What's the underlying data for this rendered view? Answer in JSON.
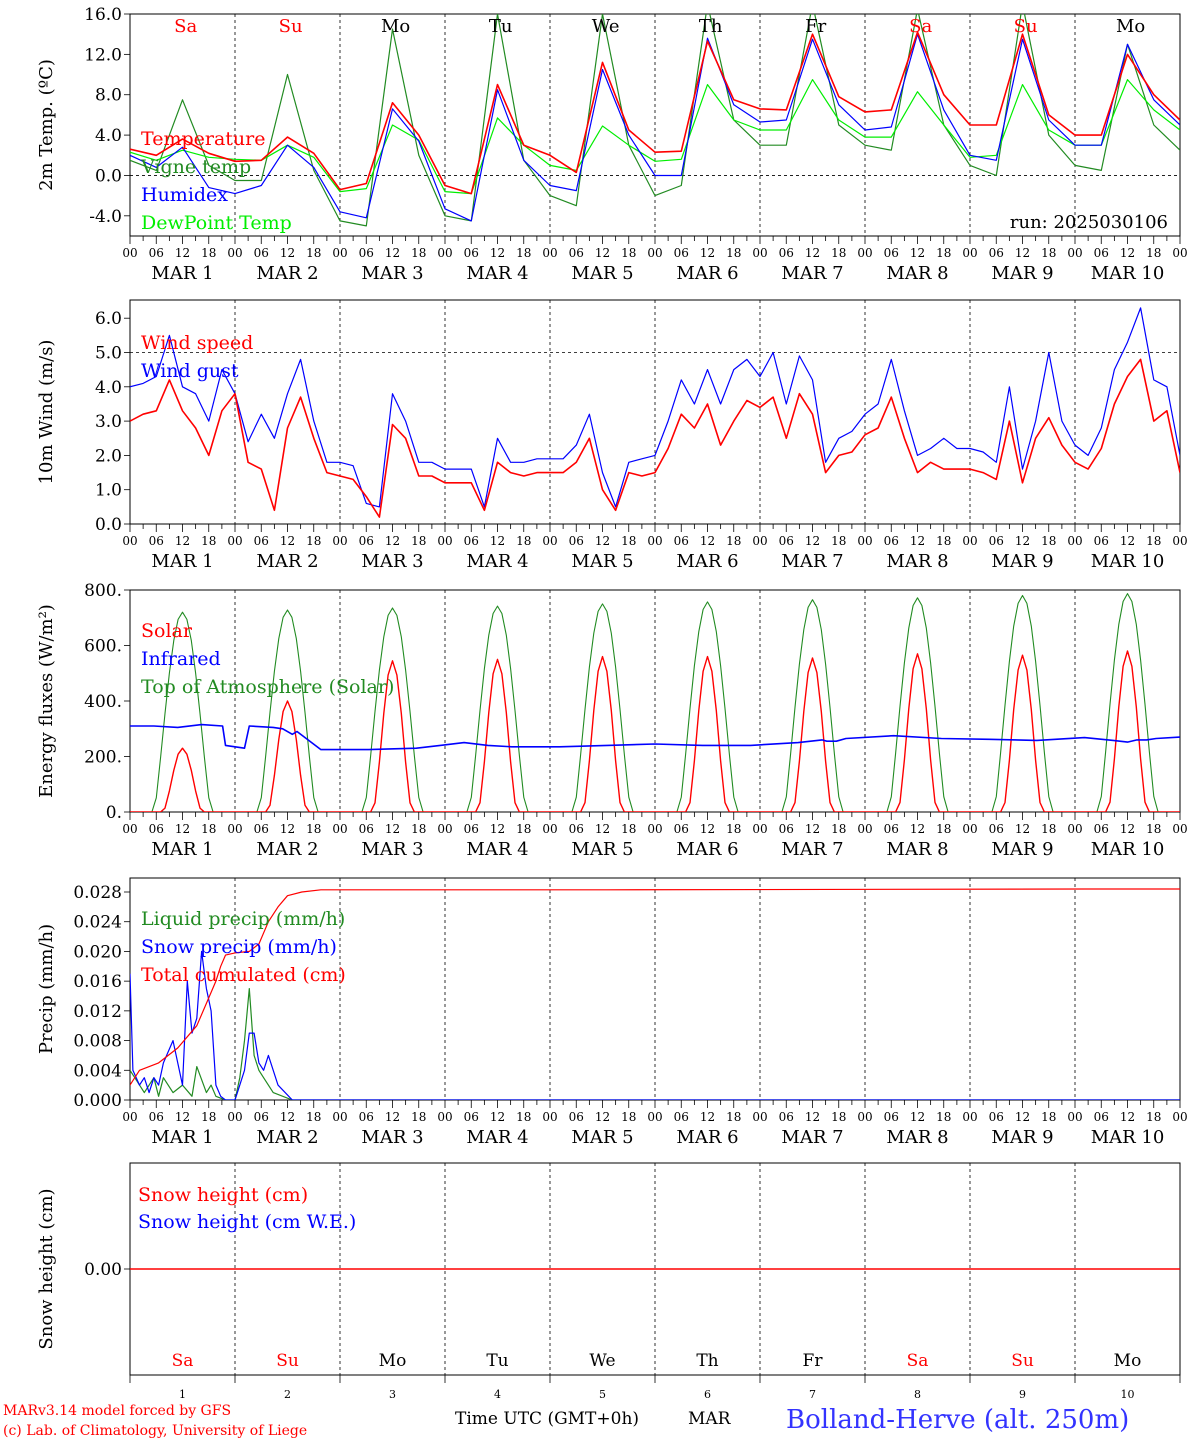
{
  "footer": {
    "credit_line1": "MARv3.14 model forced by GFS",
    "credit_line2": "(c) Lab. of Climatology, University of Liege",
    "xlabel": "Time UTC (GMT+0h)",
    "month": "MAR",
    "location": "Bolland-Herve (alt. 250m)",
    "day_numbers": [
      "1",
      "2",
      "3",
      "4",
      "5",
      "6",
      "7",
      "8",
      "9",
      "10"
    ]
  },
  "axis": {
    "hour_ticks": [
      "00",
      "06",
      "12",
      "18"
    ],
    "end_tick": "00",
    "day_labels": [
      "MAR  1",
      "MAR  2",
      "MAR  3",
      "MAR  4",
      "MAR  5",
      "MAR  6",
      "MAR  7",
      "MAR  8",
      "MAR  9",
      "MAR 10"
    ],
    "weekdays": [
      "Sa",
      "Su",
      "Mo",
      "Tu",
      "We",
      "Th",
      "Fr",
      "Sa",
      "Su",
      "Mo"
    ],
    "weekend_color": "#ff0000",
    "weekday_color": "#000000"
  },
  "colors": {
    "red": "#ff0000",
    "darkgreen": "#228b22",
    "blue": "#0000ff",
    "lightgreen": "#00ee00",
    "location": "#3333ff"
  },
  "chart_data": [
    {
      "type": "line",
      "ylabel": "2m Temp. (ºC)",
      "ylim": [
        -6,
        16
      ],
      "yticks": [
        {
          "v": -4,
          "label": "-4.0"
        },
        {
          "v": 0,
          "label": "0.0"
        },
        {
          "v": 4,
          "label": "4.0"
        },
        {
          "v": 8,
          "label": "8.0"
        },
        {
          "v": 12,
          "label": "12.0"
        },
        {
          "v": 16,
          "label": "16.0"
        }
      ],
      "refline": 0,
      "annotation": "run: 2025030106",
      "x_days": [
        0,
        0.25,
        0.5,
        0.75,
        1,
        1.25,
        1.5,
        1.75,
        2,
        2.25,
        2.5,
        2.75,
        3,
        3.25,
        3.5,
        3.75,
        4,
        4.25,
        4.5,
        4.75,
        5,
        5.25,
        5.5,
        5.75,
        6,
        6.25,
        6.5,
        6.75,
        7,
        7.25,
        7.5,
        7.75,
        8,
        8.25,
        8.5,
        8.75,
        9,
        9.25,
        9.5,
        9.75,
        10
      ],
      "series": [
        {
          "name": "Temperature",
          "color": "red",
          "values": [
            2.6,
            2.0,
            3.6,
            2.2,
            1.4,
            1.5,
            3.8,
            2.2,
            -1.4,
            -0.8,
            7.2,
            4.0,
            -1.0,
            -1.8,
            9.0,
            3.0,
            2.0,
            0.3,
            11.2,
            4.5,
            2.3,
            2.4,
            13.3,
            7.5,
            6.6,
            6.5,
            14.0,
            7.8,
            6.3,
            6.5,
            14.2,
            8.0,
            5.0,
            5.0,
            14.0,
            6.0,
            4.0,
            4.0,
            12.0,
            8.0,
            5.5
          ]
        },
        {
          "name": "Vigne temp",
          "color": "darkgreen",
          "values": [
            1.5,
            0.5,
            7.5,
            1.0,
            -0.5,
            -0.5,
            10.0,
            0.5,
            -4.5,
            -5.0,
            14.5,
            2.0,
            -4.0,
            -4.5,
            16.0,
            1.5,
            -2.0,
            -3.0,
            16.0,
            3.0,
            -2.0,
            -1.0,
            17.0,
            5.5,
            3.0,
            3.0,
            17.0,
            5.0,
            3.0,
            2.5,
            16.5,
            5.0,
            1.0,
            0.0,
            17.0,
            4.0,
            1.0,
            0.5,
            13.0,
            5.0,
            2.5
          ]
        },
        {
          "name": "Humidex",
          "color": "blue",
          "values": [
            2.0,
            0.8,
            2.8,
            -1.2,
            -1.8,
            -1.0,
            3.0,
            0.8,
            -3.6,
            -4.2,
            6.6,
            3.4,
            -3.3,
            -4.5,
            8.5,
            1.5,
            -1.0,
            -1.5,
            10.5,
            4.0,
            0.0,
            0.0,
            13.6,
            7.0,
            5.3,
            5.5,
            13.5,
            7.0,
            4.5,
            4.8,
            14.0,
            6.5,
            2.0,
            1.5,
            13.5,
            5.5,
            3.0,
            3.0,
            13.0,
            7.5,
            5.0
          ]
        },
        {
          "name": "DewPoint Temp",
          "color": "lightgreen",
          "values": [
            2.3,
            1.5,
            2.5,
            1.8,
            1.6,
            1.5,
            3.0,
            1.8,
            -1.6,
            -1.3,
            5.0,
            3.5,
            -1.6,
            -1.8,
            5.7,
            3.0,
            1.0,
            0.5,
            4.9,
            3.0,
            1.4,
            1.6,
            9.0,
            5.5,
            4.5,
            4.5,
            9.5,
            5.5,
            3.8,
            3.8,
            8.3,
            5.0,
            1.8,
            2.0,
            9.0,
            4.5,
            3.0,
            3.0,
            9.5,
            6.5,
            4.5
          ]
        }
      ]
    },
    {
      "type": "line",
      "ylabel": "10m Wind (m/s)",
      "ylim": [
        0,
        6.6
      ],
      "yticks": [
        {
          "v": 0,
          "label": "0.0"
        },
        {
          "v": 1,
          "label": "1.0"
        },
        {
          "v": 2,
          "label": "2.0"
        },
        {
          "v": 3,
          "label": "3.0"
        },
        {
          "v": 4,
          "label": "4.0"
        },
        {
          "v": 5,
          "label": "5.0"
        },
        {
          "v": 6,
          "label": "6.0"
        }
      ],
      "refline": 5,
      "x_days": [
        0,
        0.125,
        0.25,
        0.375,
        0.5,
        0.625,
        0.75,
        0.875,
        1,
        1.125,
        1.25,
        1.375,
        1.5,
        1.625,
        1.75,
        1.875,
        2,
        2.125,
        2.25,
        2.375,
        2.5,
        2.625,
        2.75,
        2.875,
        3,
        3.125,
        3.25,
        3.375,
        3.5,
        3.625,
        3.75,
        3.875,
        4,
        4.125,
        4.25,
        4.375,
        4.5,
        4.625,
        4.75,
        4.875,
        5,
        5.125,
        5.25,
        5.375,
        5.5,
        5.625,
        5.75,
        5.875,
        6,
        6.125,
        6.25,
        6.375,
        6.5,
        6.625,
        6.75,
        6.875,
        7,
        7.125,
        7.25,
        7.375,
        7.5,
        7.625,
        7.75,
        7.875,
        8,
        8.125,
        8.25,
        8.375,
        8.5,
        8.625,
        8.75,
        8.875,
        9,
        9.125,
        9.25,
        9.375,
        9.5,
        9.625,
        9.75,
        9.875,
        10
      ],
      "series": [
        {
          "name": "Wind speed",
          "color": "red",
          "values": [
            3.0,
            3.2,
            3.3,
            4.2,
            3.3,
            2.8,
            2.0,
            3.3,
            3.8,
            1.8,
            1.6,
            0.4,
            2.8,
            3.7,
            2.5,
            1.5,
            1.4,
            1.3,
            0.8,
            0.2,
            2.9,
            2.5,
            1.4,
            1.4,
            1.2,
            1.2,
            1.2,
            0.4,
            1.8,
            1.5,
            1.4,
            1.5,
            1.5,
            1.5,
            1.8,
            2.5,
            1.0,
            0.4,
            1.5,
            1.4,
            1.5,
            2.2,
            3.2,
            2.8,
            3.5,
            2.3,
            3.0,
            3.6,
            3.4,
            3.7,
            2.5,
            3.8,
            3.2,
            1.5,
            2.0,
            2.1,
            2.6,
            2.8,
            3.7,
            2.5,
            1.5,
            1.8,
            1.6,
            1.6,
            1.6,
            1.5,
            1.3,
            3.0,
            1.2,
            2.5,
            3.1,
            2.3,
            1.8,
            1.6,
            2.2,
            3.5,
            4.3,
            4.8,
            3.0,
            3.3,
            1.5
          ]
        },
        {
          "name": "Wind gust",
          "color": "blue",
          "values": [
            4.0,
            4.1,
            4.3,
            5.5,
            4.0,
            3.8,
            3.0,
            4.5,
            3.8,
            2.4,
            3.2,
            2.5,
            3.8,
            4.8,
            3.0,
            1.8,
            1.8,
            1.7,
            0.6,
            0.5,
            3.8,
            3.0,
            1.8,
            1.8,
            1.6,
            1.6,
            1.6,
            0.5,
            2.5,
            1.8,
            1.8,
            1.9,
            1.9,
            1.9,
            2.3,
            3.2,
            1.5,
            0.5,
            1.8,
            1.9,
            2.0,
            3.0,
            4.2,
            3.5,
            4.5,
            3.5,
            4.5,
            4.8,
            4.3,
            5.0,
            3.5,
            4.9,
            4.2,
            1.8,
            2.5,
            2.7,
            3.2,
            3.5,
            4.8,
            3.3,
            2.0,
            2.2,
            2.5,
            2.2,
            2.2,
            2.1,
            1.8,
            4.0,
            1.6,
            3.0,
            5.0,
            3.0,
            2.3,
            2.0,
            2.8,
            4.5,
            5.3,
            6.3,
            4.2,
            4.0,
            2.0
          ]
        }
      ]
    },
    {
      "type": "line",
      "ylabel": "Energy fluxes (W/m²)",
      "ylim": [
        0,
        800
      ],
      "yticks": [
        {
          "v": 0,
          "label": "0."
        },
        {
          "v": 200,
          "label": "200."
        },
        {
          "v": 400,
          "label": "400."
        },
        {
          "v": 600,
          "label": "600."
        },
        {
          "v": 800,
          "label": "800."
        }
      ],
      "solar_peaks": [
        230,
        400,
        545,
        550,
        560,
        560,
        555,
        570,
        565,
        580
      ],
      "toa_peaks": [
        720,
        728,
        735,
        742,
        750,
        757,
        765,
        772,
        780,
        787
      ],
      "series": [
        {
          "name": "Solar",
          "color": "red"
        },
        {
          "name": "Infrared",
          "color": "blue",
          "x_days": [
            0,
            0.25,
            0.5,
            0.75,
            0.97,
            1.0,
            1.1,
            1.2,
            1.25,
            1.5,
            1.6,
            1.7,
            1.75,
            2.0,
            2.5,
            3.0,
            3.25,
            3.5,
            3.75,
            4.0,
            4.5,
            5.0,
            5.5,
            6.0,
            6.5,
            7.0,
            7.25,
            7.3,
            7.4,
            7.5,
            8.0,
            8.5,
            9.0,
            9.5,
            10.0,
            10.3,
            10.45,
            10.55,
            10.65,
            10.75,
            11.0
          ],
          "values": [
            310,
            310,
            305,
            315,
            310,
            240,
            235,
            230,
            310,
            305,
            300,
            280,
            290,
            225,
            225,
            230,
            240,
            250,
            240,
            235,
            235,
            240,
            245,
            240,
            240,
            250,
            260,
            255,
            255,
            265,
            275,
            265,
            262,
            258,
            268,
            258,
            252,
            260,
            260,
            265,
            270
          ]
        },
        {
          "name": "Top of Atmosphere (Solar)",
          "color": "darkgreen"
        }
      ]
    },
    {
      "type": "line",
      "ylabel": "Precip (mm/h)",
      "ylim": [
        0,
        0.029
      ],
      "yticks": [
        {
          "v": 0,
          "label": "0.000"
        },
        {
          "v": 0.004,
          "label": "0.004"
        },
        {
          "v": 0.008,
          "label": "0.008"
        },
        {
          "v": 0.012,
          "label": "0.012"
        },
        {
          "v": 0.016,
          "label": "0.016"
        },
        {
          "v": 0.02,
          "label": "0.020"
        },
        {
          "v": 0.024,
          "label": "0.024"
        },
        {
          "v": 0.028,
          "label": "0.028"
        }
      ],
      "series": [
        {
          "name": "Liquid precip (mm/h)",
          "color": "darkgreen",
          "x_days": [
            0,
            0.05,
            0.15,
            0.25,
            0.3,
            0.35,
            0.45,
            0.55,
            0.65,
            0.7,
            0.8,
            0.85,
            0.9,
            1.0,
            1.1,
            1.15,
            1.2,
            1.25,
            1.3,
            1.35,
            1.4,
            1.5,
            1.7,
            2.0,
            11.0
          ],
          "values": [
            0.004,
            0.003,
            0.001,
            0.003,
            0.0005,
            0.003,
            0.001,
            0.002,
            0.0005,
            0.0045,
            0.001,
            0.002,
            0.0005,
            0,
            0,
            0.003,
            0.008,
            0.015,
            0.006,
            0.004,
            0.003,
            0.001,
            0,
            0,
            0
          ]
        },
        {
          "name": "Snow precip (mm/h)",
          "color": "blue",
          "x_days": [
            0,
            0.03,
            0.1,
            0.15,
            0.2,
            0.25,
            0.3,
            0.35,
            0.45,
            0.55,
            0.6,
            0.65,
            0.7,
            0.75,
            0.8,
            0.85,
            0.9,
            0.95,
            1.0,
            1.1,
            1.15,
            1.2,
            1.25,
            1.3,
            1.35,
            1.4,
            1.45,
            1.55,
            1.7,
            2.0,
            9.5,
            9.8,
            11.0
          ],
          "values": [
            0.017,
            0.004,
            0.002,
            0.003,
            0.001,
            0.003,
            0.002,
            0.005,
            0.008,
            0.002,
            0.016,
            0.009,
            0.011,
            0.02,
            0.015,
            0.012,
            0.002,
            0.0005,
            0,
            0,
            0.002,
            0.004,
            0.009,
            0.009,
            0.005,
            0.004,
            0.006,
            0.002,
            0,
            0,
            0,
            0,
            0
          ]
        },
        {
          "name": "Total cumulated (cm)",
          "color": "red",
          "x_days": [
            0,
            0.1,
            0.3,
            0.5,
            0.7,
            0.8,
            0.9,
            0.95,
            1.0,
            1.1,
            1.25,
            1.35,
            1.45,
            1.55,
            1.65,
            1.8,
            2.0,
            5.0,
            10.0,
            11.0
          ],
          "values": [
            0.002,
            0.004,
            0.005,
            0.007,
            0.01,
            0.013,
            0.016,
            0.018,
            0.0195,
            0.0198,
            0.02,
            0.021,
            0.024,
            0.026,
            0.0275,
            0.028,
            0.0283,
            0.0283,
            0.0284,
            0.0284
          ]
        }
      ]
    },
    {
      "type": "line",
      "ylabel": "Snow height (cm)",
      "yticks": [
        {
          "v": 0,
          "label": "0.00"
        }
      ],
      "series": [
        {
          "name": "Snow height (cm)",
          "color": "red",
          "values": [
            0,
            0
          ]
        },
        {
          "name": "Snow height (cm W.E.)",
          "color": "blue"
        }
      ]
    }
  ]
}
